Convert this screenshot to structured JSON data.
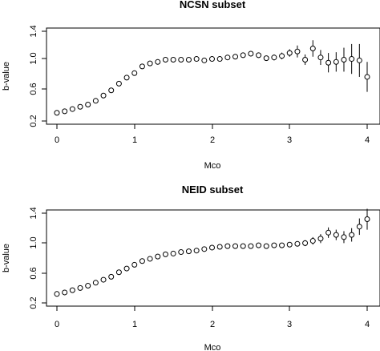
{
  "chart_data": [
    {
      "type": "scatter",
      "title": "NCSN subset",
      "xlabel": "Mco",
      "ylabel": "b-value",
      "xlim": [
        -0.12,
        4.12
      ],
      "ylim": [
        0.2,
        1.45
      ],
      "xticks": [
        "0",
        "1",
        "2",
        "3",
        "4"
      ],
      "yticks": [
        "0.2",
        "0.6",
        "1.0",
        "1.4"
      ],
      "grid": false,
      "legend": "none",
      "x": [
        0.0,
        0.1,
        0.2,
        0.3,
        0.4,
        0.5,
        0.6,
        0.7,
        0.8,
        0.9,
        1.0,
        1.1,
        1.2,
        1.3,
        1.4,
        1.5,
        1.6,
        1.7,
        1.8,
        1.9,
        2.0,
        2.1,
        2.2,
        2.3,
        2.4,
        2.5,
        2.6,
        2.7,
        2.8,
        2.9,
        3.0,
        3.1,
        3.2,
        3.3,
        3.4,
        3.5,
        3.6,
        3.7,
        3.8,
        3.9,
        4.0
      ],
      "y": [
        0.31,
        0.33,
        0.36,
        0.39,
        0.42,
        0.47,
        0.54,
        0.61,
        0.7,
        0.78,
        0.84,
        0.93,
        0.97,
        0.99,
        1.02,
        1.02,
        1.02,
        1.02,
        1.03,
        1.01,
        1.03,
        1.03,
        1.05,
        1.06,
        1.08,
        1.1,
        1.08,
        1.04,
        1.05,
        1.07,
        1.11,
        1.13,
        1.02,
        1.17,
        1.05,
        0.98,
        0.99,
        1.02,
        1.03,
        1.01,
        0.79
      ],
      "err": [
        0.005,
        0.005,
        0.005,
        0.005,
        0.006,
        0.006,
        0.007,
        0.008,
        0.009,
        0.009,
        0.01,
        0.01,
        0.012,
        0.012,
        0.014,
        0.014,
        0.015,
        0.016,
        0.017,
        0.018,
        0.02,
        0.02,
        0.02,
        0.025,
        0.025,
        0.03,
        0.035,
        0.03,
        0.04,
        0.045,
        0.05,
        0.08,
        0.07,
        0.11,
        0.1,
        0.13,
        0.13,
        0.16,
        0.2,
        0.22,
        0.2
      ]
    },
    {
      "type": "scatter",
      "title": "NEID subset",
      "xlabel": "Mco",
      "ylabel": "b-value",
      "xlim": [
        -0.12,
        4.12
      ],
      "ylim": [
        0.2,
        1.45
      ],
      "xticks": [
        "0",
        "1",
        "2",
        "3",
        "4"
      ],
      "yticks": [
        "0.2",
        "0.6",
        "1.0",
        "1.4"
      ],
      "grid": false,
      "legend": "none",
      "x": [
        0.0,
        0.1,
        0.2,
        0.3,
        0.4,
        0.5,
        0.6,
        0.7,
        0.8,
        0.9,
        1.0,
        1.1,
        1.2,
        1.3,
        1.4,
        1.5,
        1.6,
        1.7,
        1.8,
        1.9,
        2.0,
        2.1,
        2.2,
        2.3,
        2.4,
        2.5,
        2.6,
        2.7,
        2.8,
        2.9,
        3.0,
        3.1,
        3.2,
        3.3,
        3.4,
        3.5,
        3.6,
        3.7,
        3.8,
        3.9,
        4.0
      ],
      "y": [
        0.32,
        0.34,
        0.37,
        0.4,
        0.43,
        0.47,
        0.51,
        0.55,
        0.61,
        0.66,
        0.71,
        0.76,
        0.79,
        0.82,
        0.85,
        0.86,
        0.88,
        0.89,
        0.9,
        0.92,
        0.94,
        0.95,
        0.96,
        0.96,
        0.96,
        0.96,
        0.97,
        0.96,
        0.97,
        0.97,
        0.98,
        0.99,
        1.0,
        1.03,
        1.06,
        1.14,
        1.11,
        1.08,
        1.11,
        1.22,
        1.32
      ],
      "err": [
        0.005,
        0.005,
        0.005,
        0.005,
        0.006,
        0.006,
        0.006,
        0.007,
        0.007,
        0.008,
        0.008,
        0.009,
        0.009,
        0.01,
        0.01,
        0.011,
        0.011,
        0.012,
        0.013,
        0.013,
        0.014,
        0.015,
        0.015,
        0.016,
        0.017,
        0.018,
        0.02,
        0.02,
        0.022,
        0.025,
        0.03,
        0.03,
        0.04,
        0.05,
        0.06,
        0.07,
        0.07,
        0.08,
        0.09,
        0.11,
        0.14
      ]
    }
  ]
}
